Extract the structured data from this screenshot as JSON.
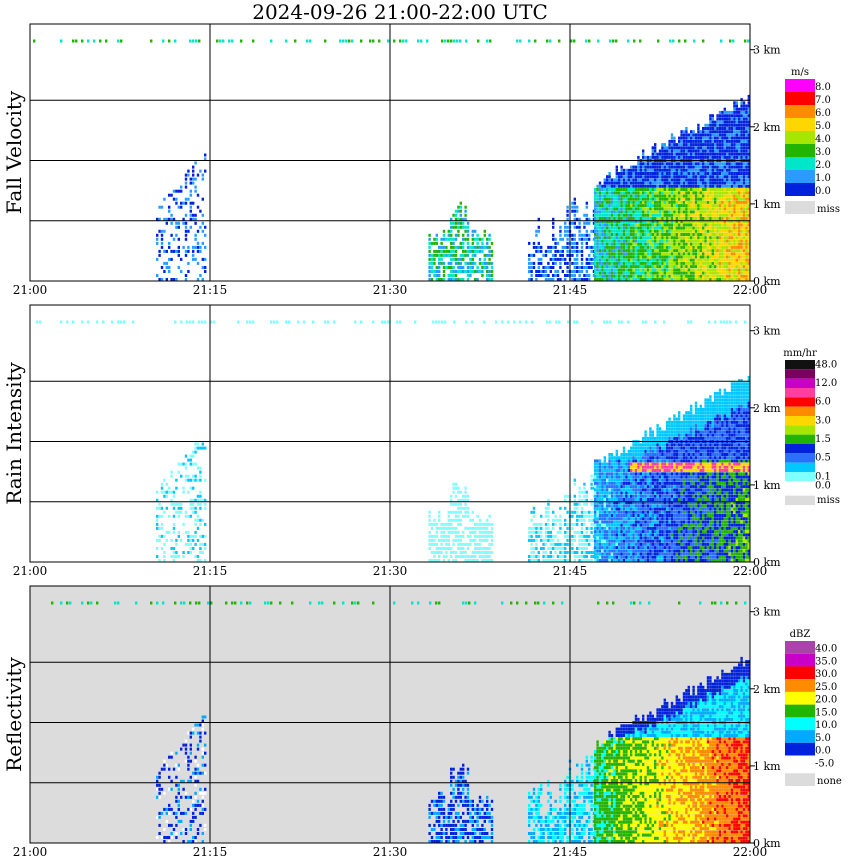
{
  "chart_data": [
    {
      "type": "heatmap",
      "title": "2024-09-26  21:00-22:00 UTC",
      "ylabel": "Fall Velocity",
      "x_ticks": [
        "21:00",
        "21:15",
        "21:30",
        "21:45",
        "22:00"
      ],
      "y_ticks": [
        "0 km",
        "1 km",
        "2 km",
        "3 km"
      ],
      "xlim": [
        "21:00",
        "22:00"
      ],
      "ylim": [
        0,
        3.2
      ],
      "legend_unit": "m/s",
      "legend_placement": "right",
      "legend": [
        {
          "label": "8.0",
          "color": "#ff00ff"
        },
        {
          "label": "7.0",
          "color": "#ff0000"
        },
        {
          "label": "6.0",
          "color": "#ff8c00"
        },
        {
          "label": "5.0",
          "color": "#ffd700"
        },
        {
          "label": "4.0",
          "color": "#a6e600"
        },
        {
          "label": "3.0",
          "color": "#22b400"
        },
        {
          "label": "2.0",
          "color": "#00e6c8"
        },
        {
          "label": "1.0",
          "color": "#2a9cff"
        },
        {
          "label": "0.0",
          "color": "#0022dd"
        },
        {
          "label": "miss",
          "color": "#dcdcdc"
        }
      ],
      "background": "#ffffff",
      "grid": true
    },
    {
      "type": "heatmap",
      "ylabel": "Rain Intensity",
      "x_ticks": [
        "21:00",
        "21:15",
        "21:30",
        "21:45",
        "22:00"
      ],
      "y_ticks": [
        "0 km",
        "1 km",
        "2 km",
        "3 km"
      ],
      "xlim": [
        "21:00",
        "22:00"
      ],
      "ylim": [
        0,
        3.2
      ],
      "legend_unit": "mm/hr",
      "legend_placement": "right",
      "legend": [
        {
          "label": "48.0",
          "color": "#111111"
        },
        {
          "label": "",
          "color": "#7a0060"
        },
        {
          "label": "12.0",
          "color": "#c800c8"
        },
        {
          "label": "",
          "color": "#ff3fa0"
        },
        {
          "label": "6.0",
          "color": "#ff0000"
        },
        {
          "label": "",
          "color": "#ff8c00"
        },
        {
          "label": "3.0",
          "color": "#ffd700"
        },
        {
          "label": "",
          "color": "#a6e600"
        },
        {
          "label": "1.5",
          "color": "#22b400"
        },
        {
          "label": "",
          "color": "#0022dd"
        },
        {
          "label": "0.5",
          "color": "#2a70ff"
        },
        {
          "label": "",
          "color": "#00c8ff"
        },
        {
          "label": "0.1",
          "color": "#80ffff"
        },
        {
          "label": "0.0",
          "color": "#ffffff"
        },
        {
          "label": "miss",
          "color": "#dcdcdc"
        }
      ],
      "background": "#ffffff",
      "grid": true
    },
    {
      "type": "heatmap",
      "ylabel": "Reflectivity",
      "x_ticks": [
        "21:00",
        "21:15",
        "21:30",
        "21:45",
        "22:00"
      ],
      "y_ticks": [
        "0 km",
        "1 km",
        "2 km",
        "3 km"
      ],
      "xlim": [
        "21:00",
        "22:00"
      ],
      "ylim": [
        0,
        3.2
      ],
      "legend_unit": "dBZ",
      "legend_placement": "right",
      "legend": [
        {
          "label": "40.0",
          "color": "#aa44aa"
        },
        {
          "label": "35.0",
          "color": "#c800c8"
        },
        {
          "label": "30.0",
          "color": "#ff0000"
        },
        {
          "label": "25.0",
          "color": "#ff8c00"
        },
        {
          "label": "20.0",
          "color": "#ffff00"
        },
        {
          "label": "15.0",
          "color": "#22b400"
        },
        {
          "label": "10.0",
          "color": "#00ffff"
        },
        {
          "label": "5.0",
          "color": "#00aaff"
        },
        {
          "label": "0.0",
          "color": "#0022dd"
        },
        {
          "label": "-5.0",
          "color": "#ffffff"
        },
        {
          "label": "none",
          "color": "#dcdcdc"
        }
      ],
      "background": "#dcdcdc",
      "grid": true
    }
  ]
}
